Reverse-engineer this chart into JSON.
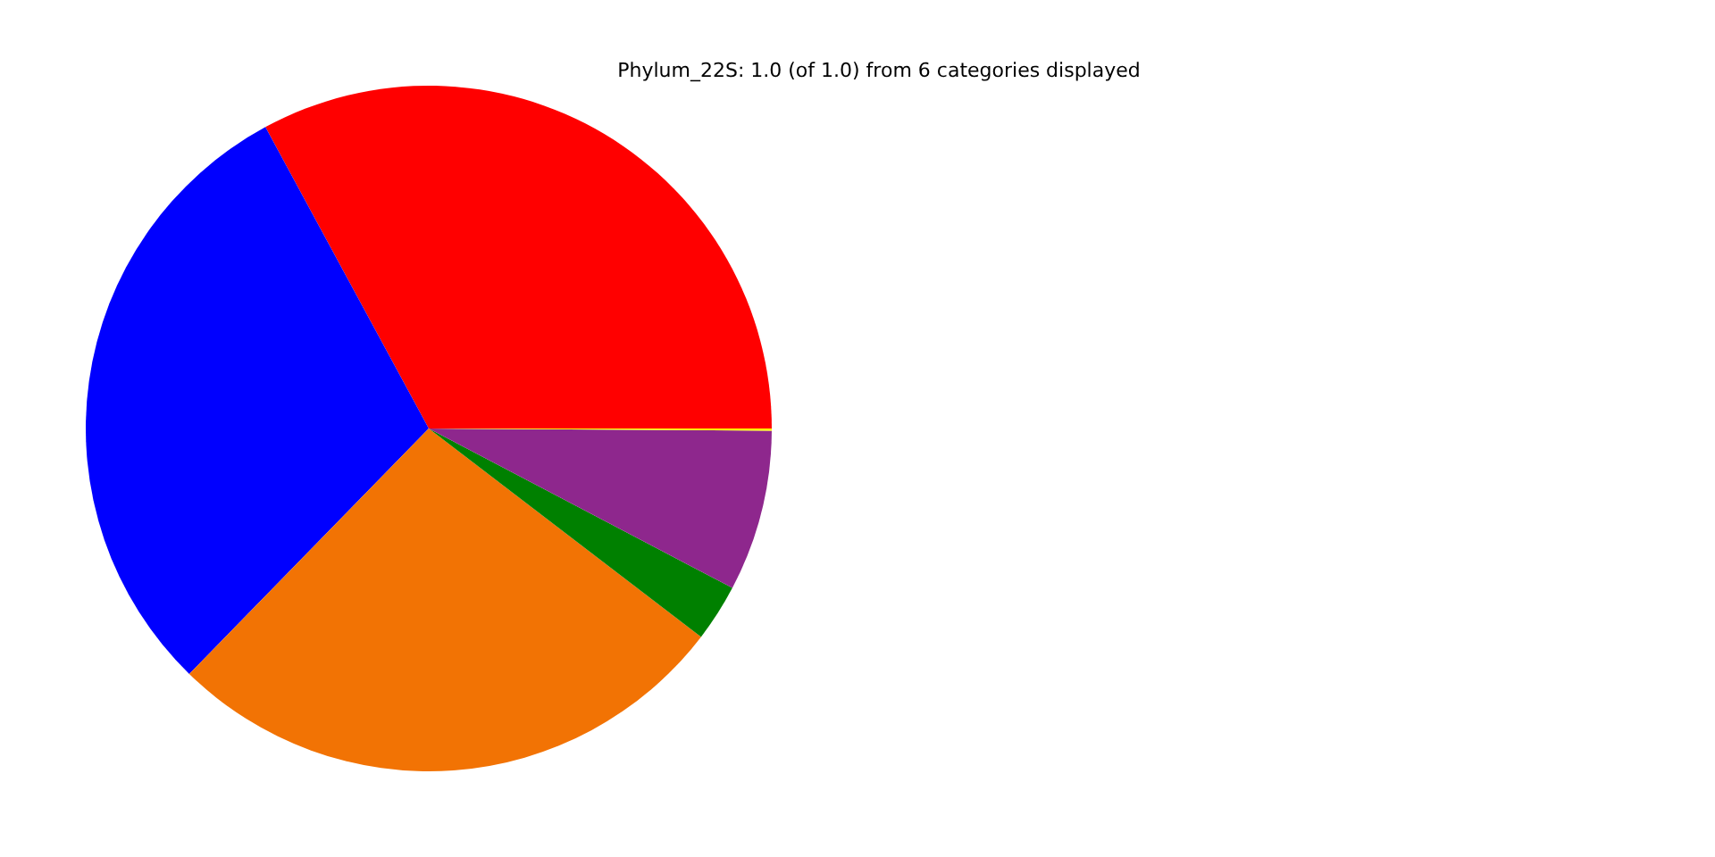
{
  "chart_data": {
    "type": "pie",
    "title": "Phylum_22S: 1.0 (of 1.0) from 6 categories displayed",
    "categories": [
      null,
      null,
      null,
      null,
      null,
      null
    ],
    "values": [
      32.9,
      29.8,
      26.9,
      2.7,
      7.6,
      0.1
    ],
    "colors": [
      "#ff0000",
      "#0000ff",
      "#f27304",
      "#008000",
      "#8e278d",
      "#ffff00"
    ]
  }
}
